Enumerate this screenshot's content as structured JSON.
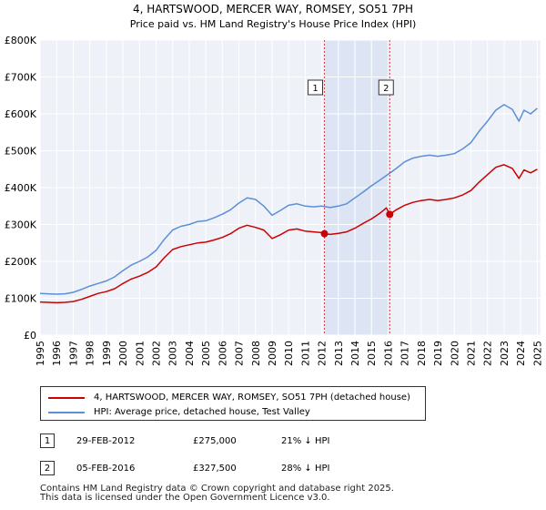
{
  "chart_data": {
    "type": "line",
    "title": "4, HARTSWOOD, MERCER WAY, ROMSEY, SO51 7PH",
    "subtitle": "Price paid vs. HM Land Registry's House Price Index (HPI)",
    "xlim": [
      1995,
      2025.2
    ],
    "ylim": [
      0,
      800000
    ],
    "y_ticks": [
      {
        "value": 0,
        "label": "£0"
      },
      {
        "value": 100000,
        "label": "£100K"
      },
      {
        "value": 200000,
        "label": "£200K"
      },
      {
        "value": 300000,
        "label": "£300K"
      },
      {
        "value": 400000,
        "label": "£400K"
      },
      {
        "value": 500000,
        "label": "£500K"
      },
      {
        "value": 600000,
        "label": "£600K"
      },
      {
        "value": 700000,
        "label": "£700K"
      },
      {
        "value": 800000,
        "label": "£800K"
      }
    ],
    "x_ticks": [
      "1995",
      "1996",
      "1997",
      "1998",
      "1999",
      "2000",
      "2001",
      "2002",
      "2003",
      "2004",
      "2005",
      "2006",
      "2007",
      "2008",
      "2009",
      "2010",
      "2011",
      "2012",
      "2013",
      "2014",
      "2015",
      "2016",
      "2017",
      "2018",
      "2019",
      "2020",
      "2021",
      "2022",
      "2023",
      "2024",
      "2025"
    ],
    "grid": true,
    "shaded_range": [
      2012.16,
      2016.1
    ],
    "series": [
      {
        "name": "4, HARTSWOOD, MERCER WAY, ROMSEY, SO51 7PH (detached house)",
        "color": "#cc0000",
        "points": [
          [
            1995,
            90000
          ],
          [
            1995.5,
            89000
          ],
          [
            1996,
            88000
          ],
          [
            1996.5,
            89000
          ],
          [
            1997,
            91000
          ],
          [
            1997.5,
            97000
          ],
          [
            1998,
            105000
          ],
          [
            1998.5,
            113000
          ],
          [
            1999,
            118000
          ],
          [
            1999.5,
            126000
          ],
          [
            2000,
            140000
          ],
          [
            2000.5,
            152000
          ],
          [
            2001,
            160000
          ],
          [
            2001.5,
            170000
          ],
          [
            2002,
            185000
          ],
          [
            2002.5,
            210000
          ],
          [
            2003,
            232000
          ],
          [
            2003.5,
            240000
          ],
          [
            2004,
            245000
          ],
          [
            2004.5,
            250000
          ],
          [
            2005,
            252000
          ],
          [
            2005.5,
            258000
          ],
          [
            2006,
            265000
          ],
          [
            2006.5,
            275000
          ],
          [
            2007,
            290000
          ],
          [
            2007.5,
            298000
          ],
          [
            2008,
            292000
          ],
          [
            2008.5,
            285000
          ],
          [
            2009,
            262000
          ],
          [
            2009.5,
            272000
          ],
          [
            2010,
            285000
          ],
          [
            2010.5,
            288000
          ],
          [
            2011,
            282000
          ],
          [
            2011.5,
            280000
          ],
          [
            2012,
            278000
          ],
          [
            2012.16,
            275000
          ],
          [
            2012.5,
            273000
          ],
          [
            2013,
            276000
          ],
          [
            2013.5,
            280000
          ],
          [
            2014,
            290000
          ],
          [
            2014.5,
            303000
          ],
          [
            2015,
            315000
          ],
          [
            2015.5,
            330000
          ],
          [
            2015.9,
            345000
          ],
          [
            2016.1,
            327500
          ],
          [
            2016.5,
            340000
          ],
          [
            2017,
            352000
          ],
          [
            2017.5,
            360000
          ],
          [
            2018,
            365000
          ],
          [
            2018.5,
            368000
          ],
          [
            2019,
            365000
          ],
          [
            2019.5,
            368000
          ],
          [
            2020,
            372000
          ],
          [
            2020.5,
            380000
          ],
          [
            2021,
            392000
          ],
          [
            2021.5,
            415000
          ],
          [
            2022,
            435000
          ],
          [
            2022.5,
            455000
          ],
          [
            2023,
            462000
          ],
          [
            2023.5,
            452000
          ],
          [
            2023.9,
            425000
          ],
          [
            2024.2,
            448000
          ],
          [
            2024.6,
            440000
          ],
          [
            2025,
            450000
          ]
        ]
      },
      {
        "name": "HPI: Average price, detached house, Test Valley",
        "color": "#5b8fd6",
        "points": [
          [
            1995,
            113000
          ],
          [
            1995.5,
            112000
          ],
          [
            1996,
            111000
          ],
          [
            1996.5,
            112000
          ],
          [
            1997,
            116000
          ],
          [
            1997.5,
            124000
          ],
          [
            1998,
            133000
          ],
          [
            1998.5,
            140000
          ],
          [
            1999,
            147000
          ],
          [
            1999.5,
            158000
          ],
          [
            2000,
            175000
          ],
          [
            2000.5,
            190000
          ],
          [
            2001,
            200000
          ],
          [
            2001.5,
            212000
          ],
          [
            2002,
            230000
          ],
          [
            2002.5,
            260000
          ],
          [
            2003,
            285000
          ],
          [
            2003.5,
            295000
          ],
          [
            2004,
            300000
          ],
          [
            2004.5,
            308000
          ],
          [
            2005,
            310000
          ],
          [
            2005.5,
            318000
          ],
          [
            2006,
            328000
          ],
          [
            2006.5,
            340000
          ],
          [
            2007,
            358000
          ],
          [
            2007.5,
            372000
          ],
          [
            2008,
            368000
          ],
          [
            2008.5,
            350000
          ],
          [
            2009,
            325000
          ],
          [
            2009.5,
            338000
          ],
          [
            2010,
            352000
          ],
          [
            2010.5,
            356000
          ],
          [
            2011,
            350000
          ],
          [
            2011.5,
            348000
          ],
          [
            2012,
            350000
          ],
          [
            2012.5,
            346000
          ],
          [
            2013,
            350000
          ],
          [
            2013.5,
            356000
          ],
          [
            2014,
            372000
          ],
          [
            2014.5,
            388000
          ],
          [
            2015,
            405000
          ],
          [
            2015.5,
            420000
          ],
          [
            2016,
            436000
          ],
          [
            2016.5,
            452000
          ],
          [
            2017,
            470000
          ],
          [
            2017.5,
            480000
          ],
          [
            2018,
            485000
          ],
          [
            2018.5,
            488000
          ],
          [
            2019,
            485000
          ],
          [
            2019.5,
            488000
          ],
          [
            2020,
            492000
          ],
          [
            2020.5,
            505000
          ],
          [
            2021,
            522000
          ],
          [
            2021.5,
            553000
          ],
          [
            2022,
            580000
          ],
          [
            2022.5,
            610000
          ],
          [
            2023,
            625000
          ],
          [
            2023.5,
            612000
          ],
          [
            2023.9,
            580000
          ],
          [
            2024.2,
            610000
          ],
          [
            2024.6,
            600000
          ],
          [
            2025,
            615000
          ]
        ]
      }
    ],
    "sales": [
      {
        "marker": "1",
        "date": "29-FEB-2012",
        "x": 2012.16,
        "price": 275000,
        "price_label": "£275,000",
        "hpi_label": "21% ↓ HPI"
      },
      {
        "marker": "2",
        "date": "05-FEB-2016",
        "x": 2016.1,
        "price": 327500,
        "price_label": "£327,500",
        "hpi_label": "28% ↓ HPI"
      }
    ]
  },
  "legend": {
    "series1": "4, HARTSWOOD, MERCER WAY, ROMSEY, SO51 7PH (detached house)",
    "series2": "HPI: Average price, detached house, Test Valley"
  },
  "footer": {
    "line1": "Contains HM Land Registry data © Crown copyright and database right 2025.",
    "line2": "This data is licensed under the Open Government Licence v3.0."
  }
}
